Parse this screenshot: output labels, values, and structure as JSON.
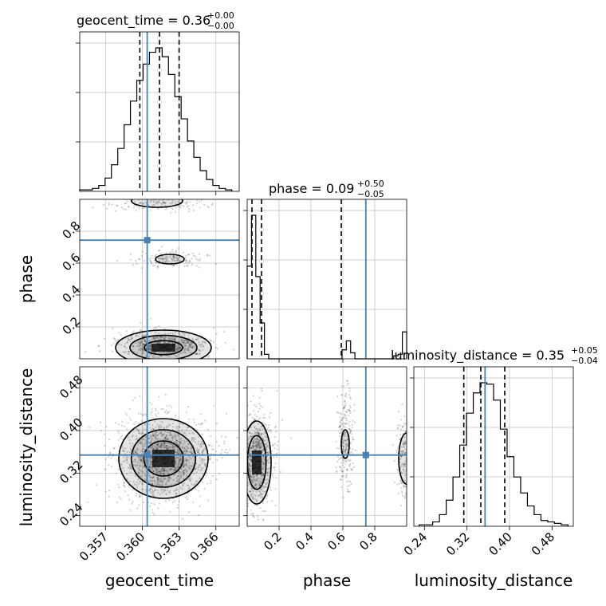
{
  "chart_data": {
    "type": "corner",
    "parameters": [
      "geocent_time",
      "phase",
      "luminosity_distance"
    ],
    "titles": {
      "geocent_time": {
        "label": "geocent_time = 0.36",
        "sup": "+0.00",
        "sub": "−0.00"
      },
      "phase": {
        "label": "phase = 0.09",
        "sup": "+0.50",
        "sub": "−0.05"
      },
      "luminosity_distance": {
        "label": "luminosity_distance = 0.35",
        "sup": "+0.05",
        "sub": "−0.04"
      }
    },
    "ranges": {
      "geocent_time": [
        0.3549,
        0.3679
      ],
      "phase": [
        0.0,
        1.0
      ],
      "luminosity_distance": [
        0.22,
        0.52
      ]
    },
    "tick_labels": {
      "geocent_time": [
        "0.357",
        "0.360",
        "0.363",
        "0.366"
      ],
      "phase": [
        "0.2",
        "0.4",
        "0.6",
        "0.8"
      ],
      "luminosity_distance": [
        "0.24",
        "0.32",
        "0.40",
        "0.48"
      ]
    },
    "ticks": {
      "geocent_time": [
        0.357,
        0.36,
        0.363,
        0.366
      ],
      "phase": [
        0.2,
        0.4,
        0.6,
        0.8
      ],
      "luminosity_distance": [
        0.24,
        0.32,
        0.4,
        0.48
      ]
    },
    "truths": {
      "geocent_time": 0.3604,
      "phase": 0.744,
      "luminosity_distance": 0.354
    },
    "quantiles": {
      "geocent_time": [
        0.3598,
        0.3614,
        0.363
      ],
      "phase": [
        0.03,
        0.09,
        0.59
      ],
      "luminosity_distance": [
        0.314,
        0.346,
        0.391
      ]
    },
    "histograms": {
      "geocent_time": [
        1,
        1,
        2,
        4,
        9,
        18,
        29,
        45,
        61,
        75,
        86,
        94,
        97,
        91,
        79,
        64,
        49,
        34,
        23,
        14,
        8,
        4,
        2,
        1
      ],
      "phase": [
        62,
        96,
        55,
        24,
        3,
        0,
        0,
        0,
        0,
        0,
        0,
        0,
        0,
        0,
        0,
        0,
        0,
        0,
        0,
        0,
        0,
        0,
        6,
        12,
        4,
        0,
        0,
        0,
        0,
        0,
        0,
        0,
        0,
        0,
        2,
        3,
        18
      ],
      "luminosity_distance": [
        1,
        1,
        3,
        8,
        18,
        34,
        56,
        78,
        92,
        99,
        98,
        87,
        67,
        48,
        34,
        23,
        14,
        8,
        4,
        3,
        2,
        1
      ]
    },
    "truth_color": "#4682b4",
    "grid": true
  }
}
